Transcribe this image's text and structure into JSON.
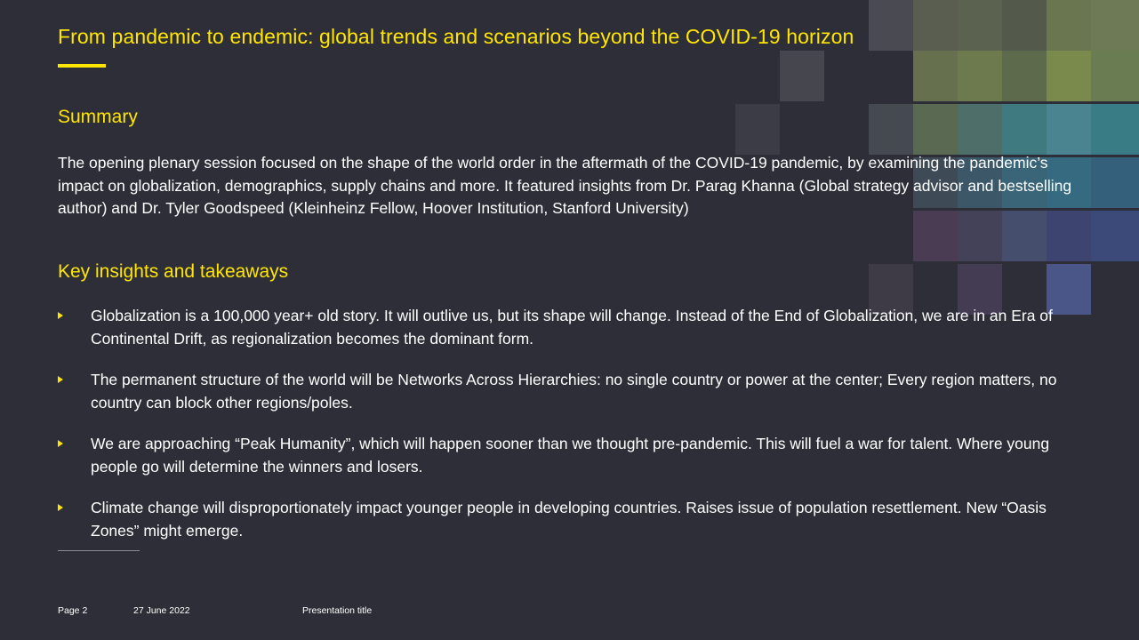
{
  "slide": {
    "title": "From pandemic to endemic: global trends and scenarios beyond the COVID-19 horizon",
    "summary_heading": "Summary",
    "summary_text": "The opening plenary session focused on the shape of the world order in the aftermath of the COVID-19 pandemic, by examining the pandemic’s impact on globalization, demographics, supply chains and more. It featured insights from Dr. Parag Khanna (Global strategy advisor and bestselling author) and Dr. Tyler Goodspeed (Kleinheinz Fellow, Hoover Institution, Stanford University)",
    "insights_heading": "Key insights and takeaways",
    "insights": [
      "Globalization is a 100,000 year+ old story. It will outlive us, but its shape will change. Instead of the End of Globalization, we are in an Era of Continental Drift, as regionalization becomes the dominant form.",
      "The permanent structure of the world will be Networks Across Hierarchies: no single country or power at the center; Every region matters, no country can block other regions/poles.",
      "We are approaching “Peak Humanity”, which will happen sooner than we thought pre-pandemic. This will fuel a war for talent. Where young people go will determine the winners and losers.",
      "Climate change will disproportionately impact younger people in developing countries. Raises issue of population resettlement. New “Oasis Zones” might emerge."
    ]
  },
  "footer": {
    "page": "Page 2",
    "date": "27 June 2022",
    "presentation": "Presentation title"
  },
  "colors": {
    "background": "#2e2e38",
    "accent": "#ffe600",
    "text": "#ffffff"
  }
}
